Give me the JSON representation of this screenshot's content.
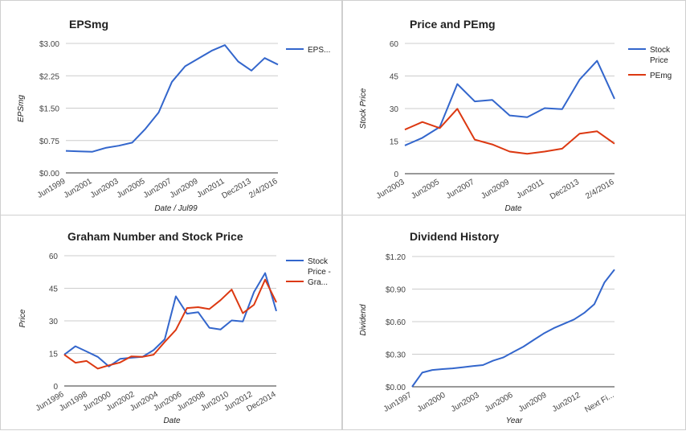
{
  "chart_data": [
    {
      "type": "line",
      "title": "EPSmg",
      "xlabel": "Date / Jul99",
      "ylabel": "EPSmg",
      "ylim": [
        0,
        3
      ],
      "yticks": [
        "$0.00",
        "$0.75",
        "$1.50",
        "$2.25",
        "$3.00"
      ],
      "xticks": [
        "Jun1999",
        "Jun2001",
        "Jun2003",
        "Jun2005",
        "Jun2007",
        "Jun2009",
        "Jun2011",
        "Dec2013",
        "2/4/2016"
      ],
      "legend_position": "right",
      "grid": true,
      "series": [
        {
          "name": "EPS...",
          "color": "#3366cc",
          "x": [
            1999,
            2000,
            2001,
            2002,
            2003,
            2004,
            2005,
            2006,
            2007,
            2008,
            2009,
            2010,
            2011,
            2012,
            2013,
            2014,
            2015
          ],
          "values": [
            0.51,
            0.5,
            0.49,
            0.58,
            0.63,
            0.7,
            1.02,
            1.4,
            2.11,
            2.47,
            2.65,
            2.83,
            2.96,
            2.58,
            2.37,
            2.66,
            2.51
          ]
        }
      ]
    },
    {
      "type": "line",
      "title": "Price and PEmg",
      "xlabel": "Date",
      "ylabel": "Stock Price",
      "ylim": [
        0,
        60
      ],
      "yticks": [
        "0",
        "15",
        "30",
        "45",
        "60"
      ],
      "xticks": [
        "Jun2003",
        "Jun2005",
        "Jun2007",
        "Jun2009",
        "Jun2011",
        "Dec2013",
        "2/4/2016"
      ],
      "legend_position": "right",
      "grid": true,
      "series": [
        {
          "name": "Stock Price",
          "color": "#3366cc",
          "x": [
            2003,
            2004,
            2005,
            2006,
            2007,
            2008,
            2009,
            2010,
            2011,
            2012,
            2013,
            2014,
            2015
          ],
          "values": [
            13.0,
            16.5,
            21.5,
            41.3,
            33.3,
            34.0,
            26.8,
            26.0,
            30.2,
            29.7,
            43.3,
            52.0,
            34.5
          ]
        },
        {
          "name": "PEmg",
          "color": "#dc3912",
          "x": [
            2003,
            2004,
            2005,
            2006,
            2007,
            2008,
            2009,
            2010,
            2011,
            2012,
            2013,
            2014,
            2015
          ],
          "values": [
            20.3,
            23.8,
            21.0,
            29.9,
            15.7,
            13.5,
            10.2,
            9.2,
            10.2,
            11.5,
            18.4,
            19.5,
            13.8
          ]
        }
      ]
    },
    {
      "type": "line",
      "title": "Graham Number and Stock Price",
      "xlabel": "Date",
      "ylabel": "Price",
      "ylim": [
        0,
        60
      ],
      "yticks": [
        "0",
        "15",
        "30",
        "45",
        "60"
      ],
      "xticks": [
        "Jun1996",
        "Jun1998",
        "Jun2000",
        "Jun2002",
        "Jun2004",
        "Jun2006",
        "Jun2008",
        "Jun2010",
        "Jun2012",
        "Dec2014"
      ],
      "legend_position": "right",
      "grid": true,
      "series": [
        {
          "name": "Stock Price - Gra...",
          "legend_lines": [
            "Stock",
            "Price -",
            "Gra..."
          ],
          "color": "#3366cc",
          "x": [
            1996,
            1997,
            1998,
            1999,
            2000,
            2001,
            2002,
            2003,
            2004,
            2005,
            2006,
            2007,
            2008,
            2009,
            2010,
            2011,
            2012,
            2013,
            2014,
            2015
          ],
          "values": [
            14.4,
            18.3,
            15.9,
            13.4,
            9.0,
            12.5,
            13.0,
            13.4,
            16.5,
            21.5,
            41.3,
            33.3,
            34.0,
            26.8,
            26.0,
            30.2,
            29.7,
            43.3,
            52.0,
            34.5
          ]
        },
        {
          "name": "Gra...",
          "color": "#dc3912",
          "x": [
            1996,
            1997,
            1998,
            1999,
            2000,
            2001,
            2002,
            2003,
            2004,
            2005,
            2006,
            2007,
            2008,
            2009,
            2010,
            2011,
            2012,
            2013,
            2014,
            2015
          ],
          "values": [
            14.4,
            10.7,
            11.5,
            8.0,
            9.5,
            10.8,
            13.6,
            13.4,
            14.4,
            20.3,
            25.8,
            35.9,
            36.3,
            35.4,
            39.5,
            44.4,
            33.5,
            37.4,
            49.0,
            38.5
          ]
        }
      ]
    },
    {
      "type": "line",
      "title": "Dividend History",
      "xlabel": "Year",
      "ylabel": "Dividend",
      "ylim": [
        0,
        1.2
      ],
      "yticks": [
        "$0.00",
        "$0.30",
        "$0.60",
        "$0.90",
        "$1.20"
      ],
      "xticks": [
        "Jun1997",
        "Jun2000",
        "Jun2003",
        "Jun2006",
        "Jun2009",
        "Jun2012",
        "Next Fi..."
      ],
      "grid": true,
      "series": [
        {
          "name": "Dividend",
          "color": "#3366cc",
          "x": [
            1996,
            1997,
            1998,
            1999,
            2000,
            2001,
            2002,
            2003,
            2004,
            2005,
            2006,
            2007,
            2008,
            2009,
            2010,
            2011,
            2012,
            2013,
            2014,
            2015,
            2016
          ],
          "values": [
            0.0,
            0.13,
            0.155,
            0.163,
            0.17,
            0.18,
            0.19,
            0.2,
            0.24,
            0.27,
            0.32,
            0.37,
            0.43,
            0.49,
            0.54,
            0.58,
            0.62,
            0.68,
            0.76,
            0.96,
            1.08
          ]
        }
      ]
    }
  ]
}
